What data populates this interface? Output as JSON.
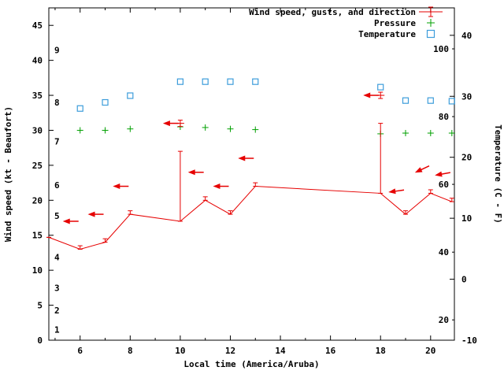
{
  "figure": {
    "background": "#ffffff",
    "axis_color": "#000000",
    "text_color": "#000000"
  },
  "chart_data": {
    "type": "line",
    "title": "",
    "xlabel": "Local time (America/Aruba)",
    "ylabel_left": "Wind speed (kt - Beaufort)",
    "ylabel_right": "Temperature (C - F)",
    "x_range": [
      4.75,
      20.95
    ],
    "x_major_ticks": [
      6,
      8,
      10,
      12,
      14,
      16,
      18,
      20
    ],
    "y_left_range": [
      0,
      47.5
    ],
    "y_left_ticks": [
      0,
      5,
      10,
      15,
      20,
      25,
      30,
      35,
      40,
      45
    ],
    "beaufort_labels": [
      {
        "label": "1",
        "kt": 1.5
      },
      {
        "label": "2",
        "kt": 4.3
      },
      {
        "label": "3",
        "kt": 7.5
      },
      {
        "label": "4",
        "kt": 11.9
      },
      {
        "label": "5",
        "kt": 17.8
      },
      {
        "label": "6",
        "kt": 22.2
      },
      {
        "label": "7",
        "kt": 28.4
      },
      {
        "label": "8",
        "kt": 34.0
      },
      {
        "label": "9",
        "kt": 41.5
      }
    ],
    "y_right_range": [
      -10,
      44.5
    ],
    "y_right_ticks": [
      -10,
      0,
      10,
      20,
      30,
      40
    ],
    "fahrenheit_labels": [
      {
        "label": "20",
        "c": -6.67
      },
      {
        "label": "40",
        "c": 4.44
      },
      {
        "label": "60",
        "c": 15.56
      },
      {
        "label": "80",
        "c": 26.67
      },
      {
        "label": "100",
        "c": 37.78
      }
    ],
    "legend": [
      {
        "label": "Wind speed, gusts, and direction",
        "series": "wind",
        "color": "#e60000"
      },
      {
        "label": "Pressure",
        "series": "pressure",
        "color": "#00a000"
      },
      {
        "label": "Temperature",
        "series": "temperature",
        "color": "#3d9ddb"
      }
    ],
    "series": {
      "wind": {
        "color": "#e60000",
        "x": [
          4.75,
          6,
          7,
          8,
          10,
          11,
          12,
          13,
          18,
          19,
          20,
          20.85
        ],
        "speed": [
          14.7,
          13,
          14,
          18,
          17,
          20,
          18,
          22,
          21,
          18,
          21,
          19.8
        ],
        "gust": [
          14.7,
          13.5,
          14.5,
          18.5,
          27,
          20.5,
          18.5,
          22.5,
          31,
          18.5,
          21.5,
          20.3
        ]
      },
      "gust_peak_markers": [
        {
          "x": 10,
          "kt": 31
        },
        {
          "x": 18,
          "kt": 35
        }
      ],
      "wind_direction_arrows": [
        {
          "x": 6,
          "kt": 17,
          "tilt_deg": 0
        },
        {
          "x": 7,
          "kt": 18,
          "tilt_deg": 0
        },
        {
          "x": 8,
          "kt": 22,
          "tilt_deg": 0
        },
        {
          "x": 10,
          "kt": 31,
          "tilt_deg": 0
        },
        {
          "x": 11,
          "kt": 24,
          "tilt_deg": 0
        },
        {
          "x": 12,
          "kt": 22,
          "tilt_deg": 0
        },
        {
          "x": 13,
          "kt": 26,
          "tilt_deg": 0
        },
        {
          "x": 18,
          "kt": 35,
          "tilt_deg": 0
        },
        {
          "x": 19,
          "kt": 21.5,
          "tilt_deg": 8
        },
        {
          "x": 20,
          "kt": 25,
          "tilt_deg": 25
        },
        {
          "x": 20.85,
          "kt": 24,
          "tilt_deg": 10
        }
      ],
      "pressure": {
        "color": "#00a000",
        "x": [
          6,
          7,
          8,
          10,
          11,
          12,
          13,
          18,
          19,
          20,
          20.85
        ],
        "values_inHg": [
          30.0,
          30.0,
          30.2,
          30.5,
          30.4,
          30.2,
          30.1,
          29.5,
          29.6,
          29.6,
          29.6
        ]
      },
      "temperature": {
        "color": "#3d9ddb",
        "x": [
          6,
          7,
          8,
          10,
          11,
          12,
          13,
          18,
          19,
          20,
          20.85
        ],
        "values_c": [
          28,
          29,
          30.1,
          32.4,
          32.4,
          32.4,
          32.4,
          31.5,
          29.3,
          29.3,
          29.2
        ]
      }
    }
  }
}
